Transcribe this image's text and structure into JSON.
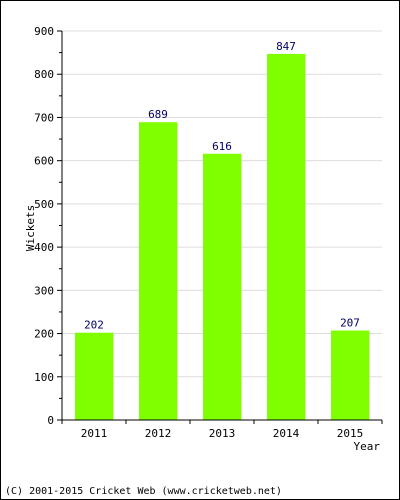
{
  "chart_data": {
    "type": "bar",
    "categories": [
      "2011",
      "2012",
      "2013",
      "2014",
      "2015"
    ],
    "values": [
      202,
      689,
      616,
      847,
      207
    ],
    "value_labels": [
      "202",
      "689",
      "616",
      "847",
      "207"
    ],
    "xlabel": "Year",
    "ylabel": "Wickets",
    "ylim": [
      0,
      900
    ],
    "yticks": [
      "0",
      "100",
      "200",
      "300",
      "400",
      "500",
      "600",
      "700",
      "800",
      "900"
    ],
    "grid": true,
    "bar_color": "#80ff00",
    "grid_color": "#dddddd"
  },
  "footer": {
    "credit": "(C) 2001-2015 Cricket Web (www.cricketweb.net)"
  }
}
